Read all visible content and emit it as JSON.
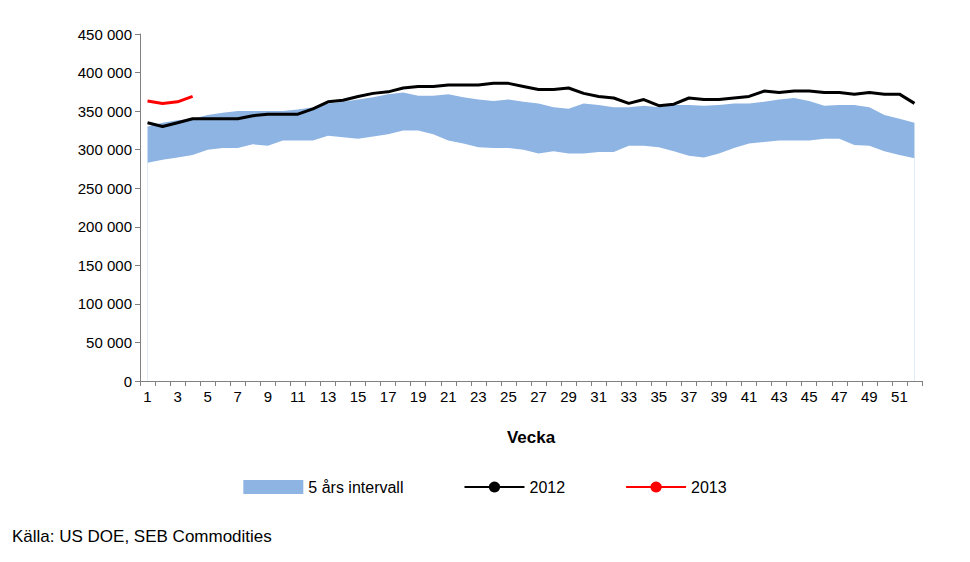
{
  "chart_data": {
    "type": "line",
    "xlabel": "Vecka",
    "source": "Källa: US DOE, SEB Commodities",
    "categories": [
      1,
      null,
      3,
      null,
      5,
      null,
      7,
      null,
      9,
      null,
      11,
      null,
      13,
      null,
      15,
      null,
      17,
      null,
      19,
      null,
      21,
      null,
      23,
      null,
      25,
      null,
      27,
      null,
      29,
      null,
      31,
      null,
      33,
      null,
      35,
      null,
      37,
      null,
      39,
      null,
      41,
      null,
      43,
      null,
      45,
      null,
      47,
      null,
      49,
      null,
      51,
      null
    ],
    "ylim": [
      0,
      450000
    ],
    "yticks": [
      0,
      {
        "value": 50000,
        "label": "50 000"
      },
      {
        "value": 100000,
        "label": "100 000"
      },
      {
        "value": 150000,
        "label": "150 000"
      },
      {
        "value": 200000,
        "label": "200 000"
      },
      {
        "value": 250000,
        "label": "250 000"
      },
      {
        "value": 300000,
        "label": "300 000"
      },
      {
        "value": 350000,
        "label": "350 000"
      },
      {
        "value": 400000,
        "label": "400 000"
      },
      {
        "value": 450000,
        "label": "450 000"
      }
    ],
    "grid": false,
    "legend": "bottom",
    "series": [
      {
        "name": "5 års intervall",
        "type": "area",
        "color": "#8eb4e3",
        "low": [
          283000,
          287000,
          290000,
          293000,
          300000,
          302000,
          302000,
          307000,
          305000,
          312000,
          312000,
          312000,
          318000,
          316000,
          314000,
          317000,
          320000,
          325000,
          325000,
          320000,
          312000,
          308000,
          303000,
          302000,
          302000,
          300000,
          295000,
          298000,
          295000,
          295000,
          297000,
          297000,
          305000,
          305000,
          303000,
          298000,
          292000,
          290000,
          295000,
          302000,
          308000,
          310000,
          312000,
          312000,
          312000,
          314000,
          314000,
          306000,
          305000,
          298000,
          293000,
          289000
        ],
        "high": [
          330000,
          335000,
          338000,
          340000,
          345000,
          348000,
          350000,
          350000,
          350000,
          350000,
          352000,
          355000,
          360000,
          362000,
          365000,
          368000,
          372000,
          374000,
          370000,
          370000,
          372000,
          368000,
          365000,
          363000,
          365000,
          362000,
          360000,
          355000,
          353000,
          360000,
          358000,
          355000,
          355000,
          357000,
          355000,
          358000,
          358000,
          357000,
          358000,
          360000,
          360000,
          362000,
          365000,
          367000,
          363000,
          357000,
          358000,
          358000,
          355000,
          345000,
          340000,
          335000
        ]
      },
      {
        "name": "2012",
        "type": "line",
        "color": "#000000",
        "values": [
          335000,
          330000,
          335000,
          340000,
          340000,
          340000,
          340000,
          344000,
          346000,
          346000,
          346000,
          353000,
          362000,
          364000,
          369000,
          373000,
          375000,
          380000,
          382000,
          382000,
          384000,
          384000,
          384000,
          386000,
          386000,
          382000,
          378000,
          378000,
          380000,
          373000,
          369000,
          367000,
          360000,
          365000,
          357000,
          359000,
          367000,
          365000,
          365000,
          367000,
          369000,
          376000,
          374000,
          376000,
          376000,
          374000,
          374000,
          372000,
          374000,
          372000,
          372000,
          360000
        ]
      },
      {
        "name": "2013",
        "type": "line",
        "color": "#ff0000",
        "values": [
          363000,
          360000,
          362000,
          369000,
          null,
          null,
          null,
          null,
          null,
          null,
          null,
          null,
          null,
          null,
          null,
          null,
          null,
          null,
          null,
          null,
          null,
          null,
          null,
          null,
          null,
          null,
          null,
          null,
          null,
          null,
          null,
          null,
          null,
          null,
          null,
          null,
          null,
          null,
          null,
          null,
          null,
          null,
          null,
          null,
          null,
          null,
          null,
          null,
          null,
          null,
          null,
          null
        ]
      }
    ]
  }
}
